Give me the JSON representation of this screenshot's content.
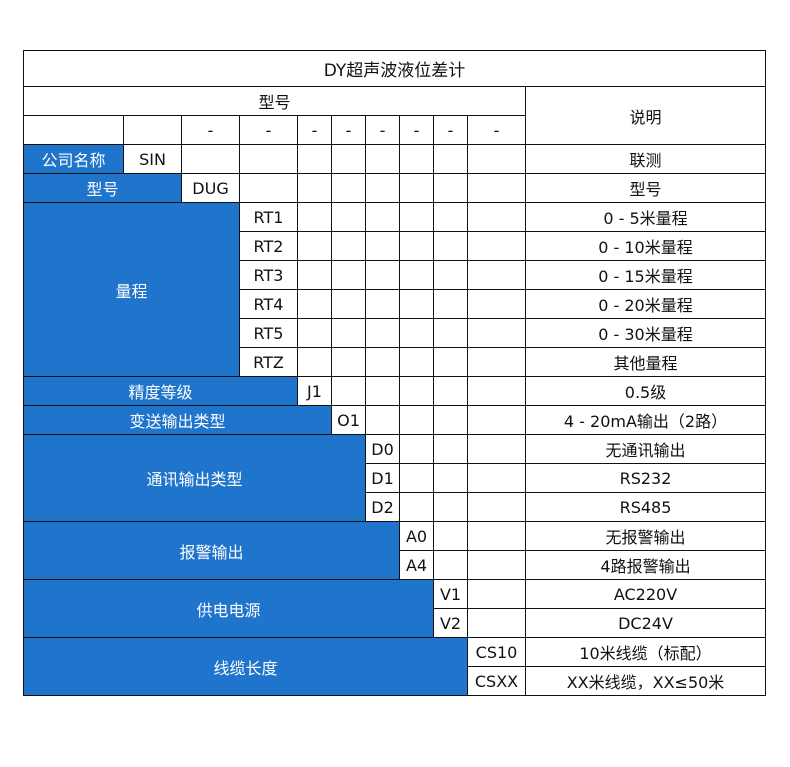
{
  "title": "DY超声波液位差计",
  "header": {
    "model_label": "型号",
    "desc_label": "说明",
    "separators": [
      "",
      "",
      "-",
      "-",
      "-",
      "-",
      "-",
      "-",
      "-",
      "-"
    ]
  },
  "accent_color": "#1f74cc",
  "groups": [
    {
      "label": "公司名称",
      "options": [
        {
          "code": "SIN",
          "desc": "联测"
        }
      ]
    },
    {
      "label": "型号",
      "options": [
        {
          "code": "DUG",
          "desc": "型号"
        }
      ]
    },
    {
      "label": "量程",
      "options": [
        {
          "code": "RT1",
          "desc": "0 - 5米量程"
        },
        {
          "code": "RT2",
          "desc": "0 - 10米量程"
        },
        {
          "code": "RT3",
          "desc": "0 - 15米量程"
        },
        {
          "code": "RT4",
          "desc": "0 - 20米量程"
        },
        {
          "code": "RT5",
          "desc": "0 - 30米量程"
        },
        {
          "code": "RTZ",
          "desc": "其他量程"
        }
      ]
    },
    {
      "label": "精度等级",
      "options": [
        {
          "code": "J1",
          "desc": "0.5级"
        }
      ]
    },
    {
      "label": "变送输出类型",
      "options": [
        {
          "code": "O1",
          "desc": "4 - 20mA输出（2路）"
        }
      ]
    },
    {
      "label": "通讯输出类型",
      "options": [
        {
          "code": "D0",
          "desc": "无通讯输出"
        },
        {
          "code": "D1",
          "desc": "RS232"
        },
        {
          "code": "D2",
          "desc": "RS485"
        }
      ]
    },
    {
      "label": "报警输出",
      "options": [
        {
          "code": "A0",
          "desc": "无报警输出"
        },
        {
          "code": "A4",
          "desc": "4路报警输出"
        }
      ]
    },
    {
      "label": "供电电源",
      "options": [
        {
          "code": "V1",
          "desc": "AC220V"
        },
        {
          "code": "V2",
          "desc": "DC24V"
        }
      ]
    },
    {
      "label": "线缆长度",
      "options": [
        {
          "code": "CS10",
          "desc": "10米线缆（标配）"
        },
        {
          "code": "CSXX",
          "desc": "XX米线缆，XX≤50米"
        }
      ]
    }
  ]
}
